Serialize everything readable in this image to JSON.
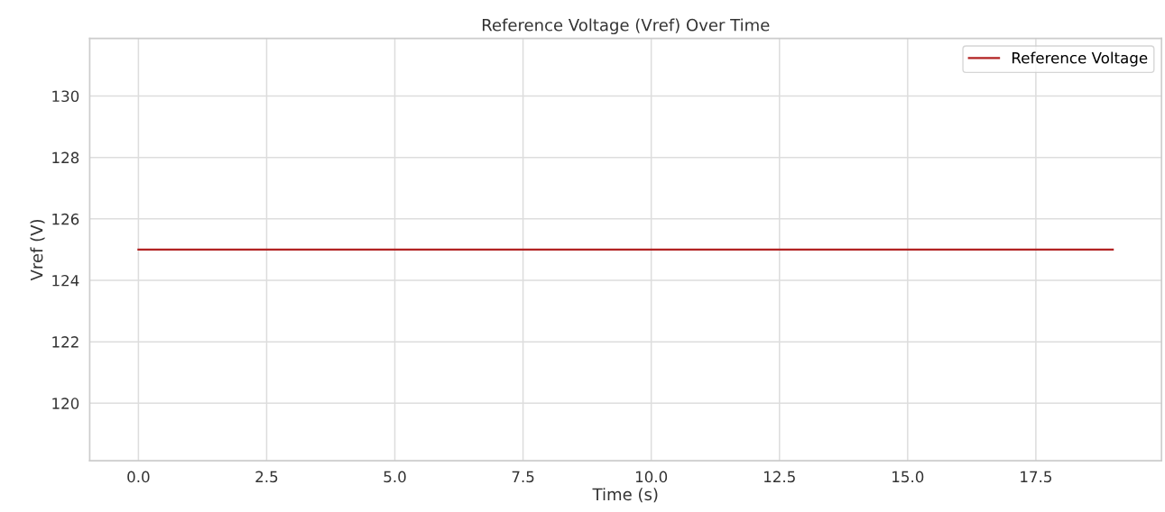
{
  "chart_data": {
    "type": "line",
    "title": "Reference Voltage (Vref) Over Time",
    "xlabel": "Time (s)",
    "ylabel": "Vref (V)",
    "x": [
      0,
      19
    ],
    "series": [
      {
        "name": "Reference Voltage",
        "color": "#b22222",
        "values": [
          125,
          125
        ]
      }
    ],
    "xlim": [
      -0.95,
      19.95
    ],
    "ylim": [
      118.125,
      131.875
    ],
    "xticks": [
      {
        "value": 0,
        "label": "0.0"
      },
      {
        "value": 2.5,
        "label": "2.5"
      },
      {
        "value": 5,
        "label": "5.0"
      },
      {
        "value": 7.5,
        "label": "7.5"
      },
      {
        "value": 10,
        "label": "10.0"
      },
      {
        "value": 12.5,
        "label": "12.5"
      },
      {
        "value": 15,
        "label": "15.0"
      },
      {
        "value": 17.5,
        "label": "17.5"
      }
    ],
    "yticks": [
      120,
      122,
      124,
      126,
      128,
      130
    ],
    "grid": true,
    "legend": "top right",
    "marker": "none",
    "line_style": "solid"
  }
}
